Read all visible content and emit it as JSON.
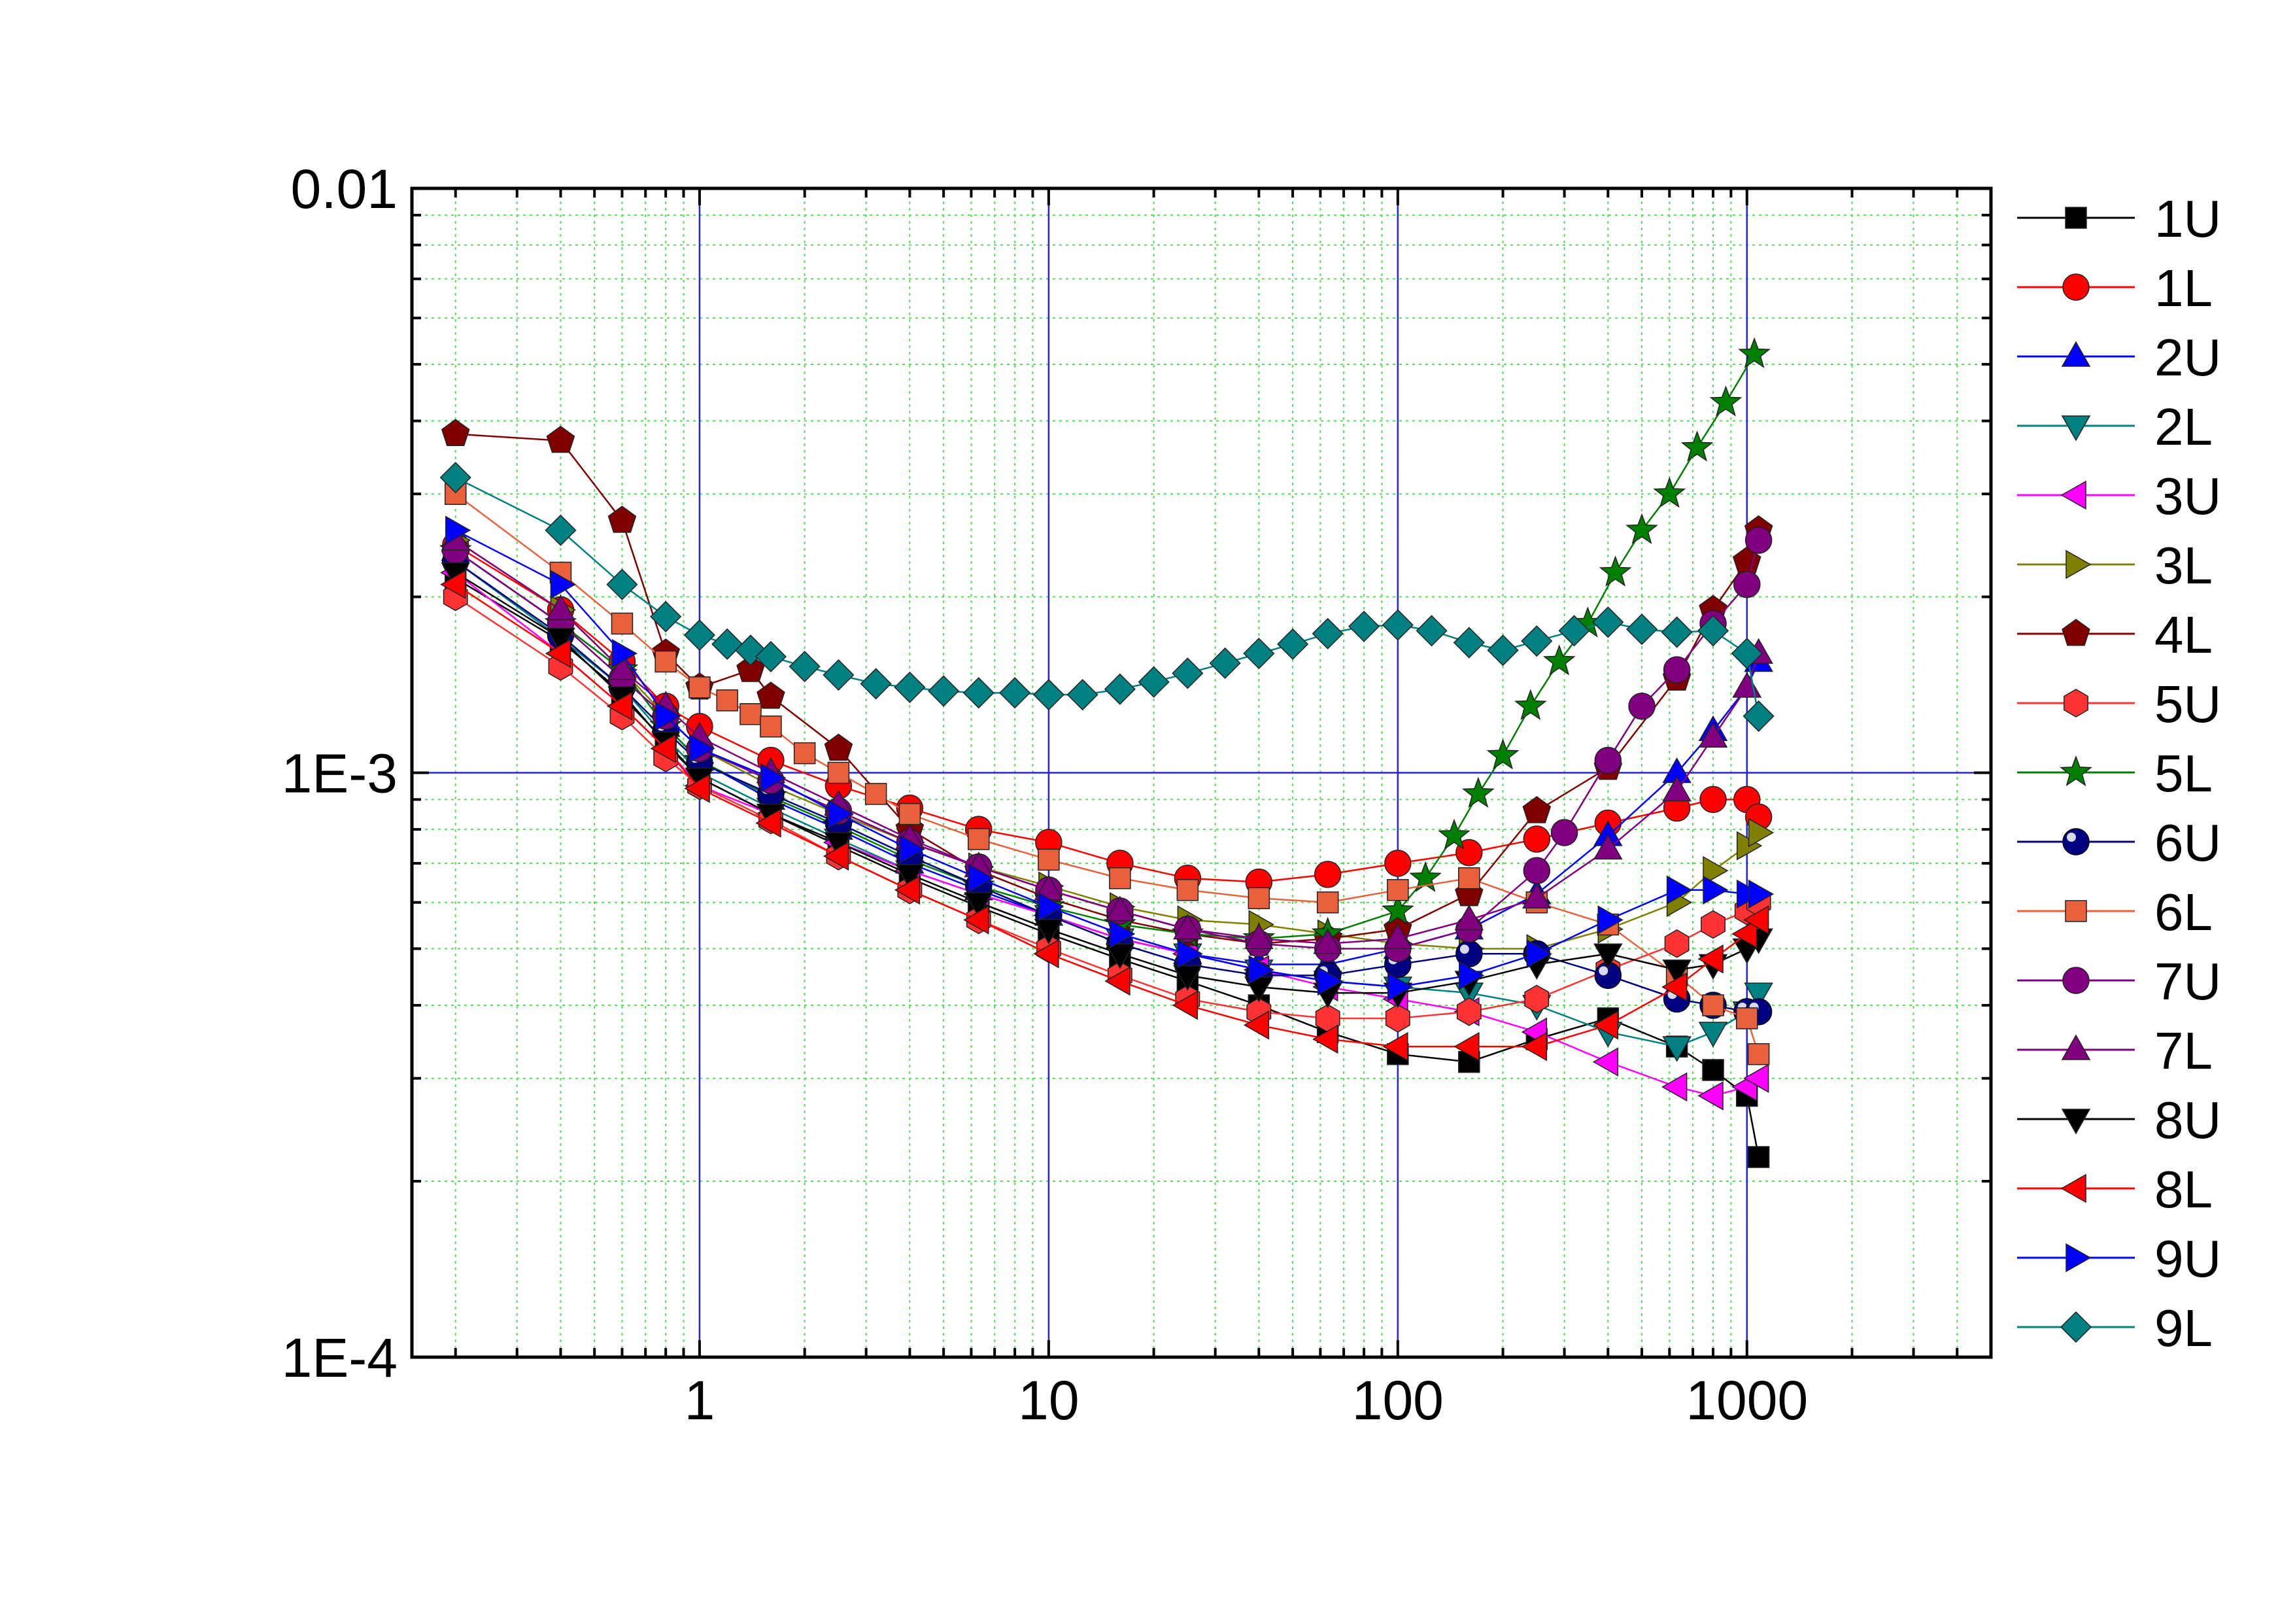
{
  "chart_data": {
    "type": "line",
    "title": "",
    "xlabel": "",
    "ylabel": "",
    "x_scale": "log",
    "y_scale": "log",
    "xlim": [
      0.15,
      5000
    ],
    "ylim": [
      0.0001,
      0.01
    ],
    "x_ticks": [
      1,
      10,
      100,
      1000
    ],
    "x_tick_labels": [
      "1",
      "10",
      "100",
      "1000"
    ],
    "y_ticks": [
      0.0001,
      0.001,
      0.01
    ],
    "y_tick_labels": [
      "1E-4",
      "1E-3",
      "0.01"
    ],
    "grid": true,
    "legend_position": "right",
    "series": [
      {
        "name": "1U",
        "marker": "square",
        "color": "#000000",
        "x": [
          0.2,
          0.4,
          0.6,
          0.8,
          1,
          1.6,
          2.5,
          4,
          6.3,
          10,
          16,
          25,
          40,
          63,
          100,
          160,
          250,
          400,
          630,
          800,
          1000,
          1080
        ],
        "y": [
          0.00215,
          0.00168,
          0.00137,
          0.00112,
          0.00098,
          0.00085,
          0.00075,
          0.00066,
          0.00059,
          0.00053,
          0.00048,
          0.00044,
          0.0004,
          0.00036,
          0.00033,
          0.00032,
          0.00035,
          0.00038,
          0.00034,
          0.00031,
          0.00028,
          0.00022
        ]
      },
      {
        "name": "1L",
        "marker": "circle",
        "color": "#ff0000",
        "x": [
          0.2,
          0.4,
          0.6,
          0.8,
          1,
          1.6,
          2.5,
          4,
          6.3,
          10,
          16,
          25,
          40,
          63,
          100,
          160,
          250,
          400,
          630,
          800,
          1000,
          1080
        ],
        "y": [
          0.00245,
          0.0019,
          0.00155,
          0.0013,
          0.0012,
          0.00105,
          0.00095,
          0.00087,
          0.0008,
          0.00076,
          0.0007,
          0.00066,
          0.00065,
          0.00067,
          0.0007,
          0.00073,
          0.00077,
          0.00082,
          0.00087,
          0.0009,
          0.0009,
          0.00084
        ]
      },
      {
        "name": "2U",
        "marker": "triangle-up",
        "color": "#0000ff",
        "x": [
          0.2,
          0.4,
          0.6,
          0.8,
          1,
          1.6,
          2.5,
          4,
          6.3,
          10,
          16,
          25,
          40,
          63,
          100,
          160,
          250,
          400,
          630,
          800,
          1000,
          1080
        ],
        "y": [
          0.0024,
          0.0018,
          0.0015,
          0.0012,
          0.00105,
          0.0009,
          0.0008,
          0.0007,
          0.00063,
          0.00057,
          0.00052,
          0.00049,
          0.00047,
          0.00047,
          0.0005,
          0.00054,
          0.00062,
          0.00078,
          0.001,
          0.00118,
          0.0014,
          0.00155
        ]
      },
      {
        "name": "2L",
        "marker": "triangle-down",
        "color": "#008080",
        "x": [
          0.2,
          0.4,
          0.6,
          0.8,
          1,
          1.6,
          2.5,
          4,
          6.3,
          10,
          16,
          25,
          40,
          63,
          100,
          160,
          250,
          400,
          630,
          800,
          1000,
          1080
        ],
        "y": [
          0.0023,
          0.0017,
          0.0014,
          0.00115,
          0.001,
          0.00087,
          0.00077,
          0.00068,
          0.00062,
          0.00057,
          0.00052,
          0.00049,
          0.00046,
          0.00044,
          0.00043,
          0.00042,
          0.0004,
          0.00036,
          0.00034,
          0.00036,
          0.00039,
          0.00042
        ]
      },
      {
        "name": "3U",
        "marker": "triangle-left",
        "color": "#ff00ff",
        "x": [
          0.2,
          0.4,
          0.6,
          0.8,
          1,
          1.6,
          2.5,
          4,
          6.3,
          10,
          16,
          25,
          40,
          63,
          100,
          160,
          250,
          400,
          630,
          800,
          1000,
          1080
        ],
        "y": [
          0.0022,
          0.0016,
          0.0013,
          0.0011,
          0.00095,
          0.00085,
          0.00076,
          0.00068,
          0.00062,
          0.00057,
          0.00052,
          0.00049,
          0.00046,
          0.00043,
          0.00041,
          0.00039,
          0.00036,
          0.00032,
          0.00029,
          0.00028,
          0.00029,
          0.0003
        ]
      },
      {
        "name": "3L",
        "marker": "triangle-right",
        "color": "#808000",
        "x": [
          0.2,
          0.4,
          0.6,
          0.8,
          1,
          1.6,
          2.5,
          4,
          6.3,
          10,
          16,
          25,
          40,
          63,
          100,
          160,
          250,
          400,
          630,
          800,
          1000,
          1080
        ],
        "y": [
          0.0025,
          0.0019,
          0.0015,
          0.00125,
          0.0011,
          0.00095,
          0.00085,
          0.00076,
          0.00069,
          0.00064,
          0.00059,
          0.00056,
          0.00055,
          0.00053,
          0.00051,
          0.0005,
          0.0005,
          0.00054,
          0.0006,
          0.00068,
          0.00075,
          0.00079
        ]
      },
      {
        "name": "4L",
        "marker": "pentagon",
        "color": "#800000",
        "x": [
          0.2,
          0.4,
          0.6,
          0.8,
          1,
          1.4,
          1.6,
          2.5,
          4,
          6.3,
          10,
          16,
          25,
          40,
          63,
          100,
          160,
          250,
          400,
          630,
          800,
          1000,
          1080
        ],
        "y": [
          0.0038,
          0.0037,
          0.0027,
          0.0016,
          0.0014,
          0.0015,
          0.00135,
          0.0011,
          0.0008,
          0.00068,
          0.00061,
          0.00056,
          0.00053,
          0.00051,
          0.00052,
          0.00054,
          0.00062,
          0.00086,
          0.00102,
          0.00145,
          0.0019,
          0.0023,
          0.0026
        ]
      },
      {
        "name": "5U",
        "marker": "hexagon",
        "color": "#ff3333",
        "x": [
          0.2,
          0.4,
          0.6,
          0.8,
          1,
          1.6,
          2.5,
          4,
          6.3,
          10,
          16,
          25,
          40,
          63,
          100,
          160,
          250,
          400,
          630,
          800,
          1000,
          1080
        ],
        "y": [
          0.002,
          0.00152,
          0.00125,
          0.00106,
          0.00095,
          0.00083,
          0.00072,
          0.00063,
          0.00056,
          0.0005,
          0.00045,
          0.00041,
          0.00039,
          0.00038,
          0.00038,
          0.00039,
          0.00041,
          0.00046,
          0.00051,
          0.00055,
          0.00058,
          0.0006
        ]
      },
      {
        "name": "5L",
        "marker": "star",
        "color": "#008000",
        "x": [
          0.2,
          0.4,
          0.6,
          0.8,
          1,
          1.6,
          2.5,
          4,
          6.3,
          10,
          16,
          25,
          40,
          63,
          100,
          120,
          145,
          170,
          200,
          240,
          290,
          350,
          420,
          500,
          600,
          720,
          870,
          1050
        ],
        "y": [
          0.0024,
          0.0018,
          0.0015,
          0.0012,
          0.00105,
          0.00091,
          0.00081,
          0.00071,
          0.00064,
          0.00059,
          0.00055,
          0.00053,
          0.00052,
          0.00053,
          0.00058,
          0.00066,
          0.00078,
          0.00092,
          0.00107,
          0.0013,
          0.00155,
          0.0018,
          0.0022,
          0.0026,
          0.003,
          0.0036,
          0.0043,
          0.0052
        ]
      },
      {
        "name": "6U",
        "marker": "sphere",
        "color": "#000080",
        "x": [
          0.2,
          0.4,
          0.6,
          0.8,
          1,
          1.6,
          2.5,
          4,
          6.3,
          10,
          16,
          25,
          40,
          63,
          100,
          160,
          250,
          400,
          630,
          800,
          1000,
          1080
        ],
        "y": [
          0.0023,
          0.00172,
          0.0014,
          0.00118,
          0.00104,
          0.00092,
          0.00082,
          0.00072,
          0.00064,
          0.00057,
          0.00051,
          0.00047,
          0.00045,
          0.00045,
          0.00047,
          0.00049,
          0.00049,
          0.00045,
          0.00041,
          0.0004,
          0.00039,
          0.00039
        ]
      },
      {
        "name": "6L",
        "marker": "square",
        "color": "#e8603c",
        "x": [
          0.2,
          0.4,
          0.6,
          0.8,
          1,
          1.2,
          1.4,
          1.6,
          2,
          2.5,
          3.2,
          4,
          6.3,
          10,
          16,
          25,
          40,
          63,
          100,
          160,
          250,
          400,
          630,
          800,
          1000,
          1080
        ],
        "y": [
          0.003,
          0.0022,
          0.0018,
          0.00155,
          0.0014,
          0.00133,
          0.00126,
          0.0012,
          0.00108,
          0.001,
          0.00092,
          0.00085,
          0.00077,
          0.00071,
          0.00066,
          0.00063,
          0.00061,
          0.0006,
          0.00063,
          0.00066,
          0.0006,
          0.00055,
          0.00045,
          0.0004,
          0.00038,
          0.00033
        ]
      },
      {
        "name": "7U",
        "marker": "circle",
        "color": "#800080",
        "x": [
          0.2,
          0.4,
          0.6,
          0.8,
          1,
          1.6,
          2.5,
          4,
          6.3,
          10,
          16,
          25,
          40,
          63,
          100,
          160,
          250,
          300,
          400,
          500,
          630,
          800,
          1000,
          1080
        ],
        "y": [
          0.0024,
          0.0018,
          0.00145,
          0.00125,
          0.0011,
          0.00097,
          0.00086,
          0.00076,
          0.00069,
          0.00063,
          0.00058,
          0.00054,
          0.00051,
          0.0005,
          0.0005,
          0.00054,
          0.00068,
          0.00079,
          0.00105,
          0.0013,
          0.0015,
          0.0018,
          0.0021,
          0.0025
        ]
      },
      {
        "name": "7L",
        "marker": "triangle-up",
        "color": "#800080",
        "x": [
          0.2,
          0.4,
          0.6,
          0.8,
          1,
          1.6,
          2.5,
          4,
          6.3,
          10,
          16,
          25,
          40,
          63,
          100,
          160,
          250,
          400,
          630,
          800,
          1000,
          1080
        ],
        "y": [
          0.0025,
          0.0019,
          0.0015,
          0.0013,
          0.00115,
          0.001,
          0.00088,
          0.00077,
          0.00069,
          0.00063,
          0.00058,
          0.00054,
          0.00052,
          0.00051,
          0.00052,
          0.00056,
          0.00061,
          0.00074,
          0.00093,
          0.00115,
          0.0014,
          0.0016
        ]
      },
      {
        "name": "8U",
        "marker": "triangle-down",
        "color": "#000000",
        "x": [
          0.2,
          0.4,
          0.6,
          0.8,
          1,
          1.6,
          2.5,
          4,
          6.3,
          10,
          16,
          25,
          40,
          63,
          100,
          160,
          250,
          400,
          630,
          800,
          1000,
          1080
        ],
        "y": [
          0.0022,
          0.0017,
          0.00135,
          0.00113,
          0.00098,
          0.00085,
          0.00076,
          0.00067,
          0.0006,
          0.00054,
          0.00049,
          0.00045,
          0.00043,
          0.00042,
          0.00042,
          0.00044,
          0.00047,
          0.00049,
          0.00046,
          0.00047,
          0.0005,
          0.00052
        ]
      },
      {
        "name": "8L",
        "marker": "triangle-left",
        "color": "#ff0000",
        "x": [
          0.2,
          0.4,
          0.6,
          0.8,
          1,
          1.6,
          2.5,
          4,
          6.3,
          10,
          16,
          25,
          40,
          63,
          100,
          160,
          250,
          400,
          630,
          800,
          1000,
          1080
        ],
        "y": [
          0.0021,
          0.0016,
          0.0013,
          0.0011,
          0.00094,
          0.00082,
          0.00072,
          0.00063,
          0.00056,
          0.00049,
          0.00044,
          0.0004,
          0.00037,
          0.00035,
          0.00034,
          0.00034,
          0.00034,
          0.00037,
          0.00043,
          0.00048,
          0.00053,
          0.00056
        ]
      },
      {
        "name": "9U",
        "marker": "triangle-right",
        "color": "#0000ff",
        "x": [
          0.2,
          0.4,
          0.6,
          0.8,
          1,
          1.6,
          2.5,
          4,
          6.3,
          10,
          16,
          25,
          40,
          63,
          100,
          160,
          250,
          400,
          630,
          800,
          1000,
          1080
        ],
        "y": [
          0.0026,
          0.0021,
          0.0016,
          0.00125,
          0.0011,
          0.00098,
          0.00085,
          0.00074,
          0.00066,
          0.00059,
          0.00053,
          0.00049,
          0.00046,
          0.00044,
          0.00043,
          0.00045,
          0.00049,
          0.00056,
          0.00063,
          0.00063,
          0.00062,
          0.00062
        ]
      },
      {
        "name": "9L",
        "marker": "diamond",
        "color": "#008080",
        "x": [
          0.2,
          0.4,
          0.6,
          0.8,
          1,
          1.2,
          1.4,
          1.6,
          2,
          2.5,
          3.2,
          4,
          5,
          6.3,
          8,
          10,
          12.5,
          16,
          20,
          25,
          32,
          40,
          50,
          63,
          80,
          100,
          125,
          160,
          200,
          250,
          320,
          400,
          500,
          630,
          800,
          1000,
          1080
        ],
        "y": [
          0.0032,
          0.0026,
          0.0021,
          0.00185,
          0.00172,
          0.00166,
          0.00162,
          0.00158,
          0.00152,
          0.00147,
          0.00142,
          0.0014,
          0.00138,
          0.00137,
          0.00137,
          0.00136,
          0.00136,
          0.00139,
          0.00143,
          0.00148,
          0.00154,
          0.0016,
          0.00166,
          0.00173,
          0.00178,
          0.00179,
          0.00175,
          0.00167,
          0.00162,
          0.00168,
          0.00175,
          0.00181,
          0.00176,
          0.00174,
          0.00175,
          0.0016,
          0.00125
        ]
      }
    ]
  }
}
